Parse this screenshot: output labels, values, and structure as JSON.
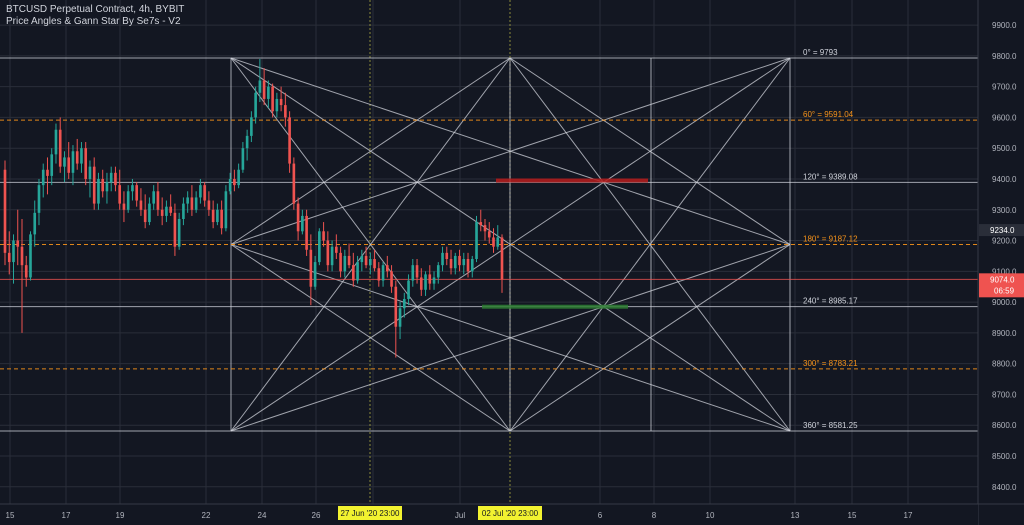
{
  "header": {
    "symbol_line": "BTCUSD Perpetual Contract, 4h, BYBIT",
    "indicator_line": "Price Angles & Gann Star By Se7s - V2"
  },
  "colors": {
    "background": "#131722",
    "grid": "#2a2e39",
    "bull": "#26a69a",
    "bear": "#ef5350",
    "gann_white": "#d1d4dc",
    "gann_orange": "#f7931a",
    "vertical_marker": "#8a8a3a",
    "date_badge": "#f2f230",
    "red_zone": "#b71c1c",
    "green_zone": "#2e7d32"
  },
  "chart_data": {
    "type": "candlestick",
    "title": "",
    "xlabel": "",
    "ylabel": "",
    "ylim": [
      8350,
      10000
    ],
    "x_ticks": [
      "15",
      "17",
      "19",
      "22",
      "24",
      "26",
      "29",
      "Jul",
      "6",
      "8",
      "10",
      "13",
      "15",
      "17"
    ],
    "y_ticks": [
      9900.0,
      9800.0,
      9700.0,
      9600.0,
      9500.0,
      9400.0,
      9300.0,
      9200.0,
      9100.0,
      9000.0,
      8900.0,
      8800.0,
      8700.0,
      8600.0,
      8500.0,
      8400.0
    ],
    "gann_levels": [
      {
        "label": "0° = 9793",
        "price": 9793,
        "style": "solid"
      },
      {
        "label": "60° = 9591.04",
        "price": 9591.04,
        "style": "dashed"
      },
      {
        "label": "120° = 9389.08",
        "price": 9389.08,
        "style": "solid"
      },
      {
        "label": "180° = 9187.12",
        "price": 9187.12,
        "style": "dashed"
      },
      {
        "label": "240° = 8985.17",
        "price": 8985.17,
        "style": "solid"
      },
      {
        "label": "300° = 8783.21",
        "price": 8783.21,
        "style": "dashed"
      },
      {
        "label": "360° = 8581.25",
        "price": 8581.25,
        "style": "solid"
      }
    ],
    "price_badges": [
      {
        "label": "9234.0",
        "price": 9234.0,
        "kind": "reference"
      },
      {
        "label": "9074.0",
        "price": 9074.0,
        "kind": "last"
      }
    ],
    "countdown": "06:59",
    "date_markers": [
      {
        "label": "27 Jun '20  23:00"
      },
      {
        "label": "02 Jul '20  23:00"
      }
    ],
    "zones": [
      {
        "name": "resistance",
        "price": 9395
      },
      {
        "name": "support",
        "price": 8985
      }
    ],
    "candles": [
      [
        9430,
        9460,
        9120,
        9160
      ],
      [
        9160,
        9230,
        9090,
        9130
      ],
      [
        9130,
        9220,
        9060,
        9200
      ],
      [
        9200,
        9300,
        9120,
        9180
      ],
      [
        9180,
        9270,
        8900,
        9120
      ],
      [
        9120,
        9150,
        9050,
        9080
      ],
      [
        9080,
        9230,
        9070,
        9220
      ],
      [
        9220,
        9330,
        9180,
        9290
      ],
      [
        9290,
        9400,
        9250,
        9380
      ],
      [
        9380,
        9450,
        9340,
        9430
      ],
      [
        9430,
        9470,
        9350,
        9410
      ],
      [
        9410,
        9500,
        9380,
        9480
      ],
      [
        9480,
        9580,
        9450,
        9560
      ],
      [
        9560,
        9600,
        9420,
        9440
      ],
      [
        9440,
        9490,
        9390,
        9470
      ],
      [
        9470,
        9520,
        9400,
        9420
      ],
      [
        9420,
        9510,
        9380,
        9490
      ],
      [
        9490,
        9530,
        9430,
        9450
      ],
      [
        9450,
        9520,
        9420,
        9500
      ],
      [
        9500,
        9520,
        9380,
        9400
      ],
      [
        9400,
        9460,
        9340,
        9440
      ],
      [
        9440,
        9470,
        9300,
        9320
      ],
      [
        9320,
        9420,
        9300,
        9400
      ],
      [
        9400,
        9430,
        9340,
        9360
      ],
      [
        9360,
        9420,
        9320,
        9390
      ],
      [
        9390,
        9440,
        9360,
        9420
      ],
      [
        9420,
        9440,
        9360,
        9380
      ],
      [
        9380,
        9430,
        9300,
        9320
      ],
      [
        9320,
        9360,
        9260,
        9300
      ],
      [
        9300,
        9380,
        9290,
        9360
      ],
      [
        9360,
        9400,
        9330,
        9380
      ],
      [
        9380,
        9390,
        9310,
        9330
      ],
      [
        9330,
        9370,
        9280,
        9300
      ],
      [
        9300,
        9350,
        9240,
        9260
      ],
      [
        9260,
        9340,
        9250,
        9320
      ],
      [
        9320,
        9380,
        9300,
        9360
      ],
      [
        9360,
        9390,
        9280,
        9300
      ],
      [
        9300,
        9340,
        9250,
        9280
      ],
      [
        9280,
        9330,
        9260,
        9310
      ],
      [
        9310,
        9350,
        9280,
        9290
      ],
      [
        9290,
        9320,
        9150,
        9180
      ],
      [
        9180,
        9290,
        9170,
        9270
      ],
      [
        9270,
        9340,
        9250,
        9320
      ],
      [
        9320,
        9360,
        9290,
        9340
      ],
      [
        9340,
        9380,
        9280,
        9300
      ],
      [
        9300,
        9360,
        9290,
        9340
      ],
      [
        9340,
        9400,
        9320,
        9380
      ],
      [
        9380,
        9390,
        9310,
        9330
      ],
      [
        9330,
        9360,
        9280,
        9300
      ],
      [
        9300,
        9330,
        9240,
        9260
      ],
      [
        9260,
        9320,
        9250,
        9300
      ],
      [
        9300,
        9330,
        9220,
        9240
      ],
      [
        9240,
        9380,
        9230,
        9360
      ],
      [
        9360,
        9420,
        9350,
        9400
      ],
      [
        9400,
        9430,
        9360,
        9380
      ],
      [
        9380,
        9450,
        9370,
        9430
      ],
      [
        9430,
        9520,
        9420,
        9500
      ],
      [
        9500,
        9560,
        9460,
        9540
      ],
      [
        9540,
        9620,
        9520,
        9600
      ],
      [
        9600,
        9700,
        9580,
        9680
      ],
      [
        9680,
        9790,
        9650,
        9720
      ],
      [
        9720,
        9760,
        9640,
        9660
      ],
      [
        9660,
        9720,
        9630,
        9700
      ],
      [
        9700,
        9710,
        9600,
        9620
      ],
      [
        9620,
        9680,
        9600,
        9660
      ],
      [
        9660,
        9700,
        9620,
        9640
      ],
      [
        9640,
        9680,
        9570,
        9600
      ],
      [
        9600,
        9620,
        9420,
        9450
      ],
      [
        9450,
        9470,
        9300,
        9320
      ],
      [
        9320,
        9340,
        9200,
        9230
      ],
      [
        9230,
        9300,
        9220,
        9280
      ],
      [
        9280,
        9300,
        9150,
        9170
      ],
      [
        9170,
        9220,
        8990,
        9050
      ],
      [
        9050,
        9150,
        9040,
        9130
      ],
      [
        9130,
        9240,
        9120,
        9230
      ],
      [
        9230,
        9260,
        9180,
        9200
      ],
      [
        9200,
        9230,
        9100,
        9120
      ],
      [
        9120,
        9200,
        9100,
        9180
      ],
      [
        9180,
        9220,
        9140,
        9160
      ],
      [
        9160,
        9180,
        9080,
        9100
      ],
      [
        9100,
        9170,
        9080,
        9150
      ],
      [
        9150,
        9190,
        9110,
        9120
      ],
      [
        9120,
        9160,
        9050,
        9070
      ],
      [
        9070,
        9150,
        9060,
        9130
      ],
      [
        9130,
        9170,
        9100,
        9150
      ],
      [
        9150,
        9180,
        9110,
        9120
      ],
      [
        9120,
        9160,
        9090,
        9140
      ],
      [
        9140,
        9170,
        9100,
        9110
      ],
      [
        9110,
        9130,
        9050,
        9070
      ],
      [
        9070,
        9130,
        9050,
        9120
      ],
      [
        9120,
        9150,
        9080,
        9100
      ],
      [
        9100,
        9120,
        9030,
        9050
      ],
      [
        9050,
        9070,
        8820,
        8920
      ],
      [
        8920,
        9000,
        8880,
        8980
      ],
      [
        8980,
        9030,
        8950,
        9010
      ],
      [
        9010,
        9090,
        8990,
        9070
      ],
      [
        9070,
        9140,
        9050,
        9120
      ],
      [
        9120,
        9140,
        9060,
        9080
      ],
      [
        9080,
        9110,
        9020,
        9040
      ],
      [
        9040,
        9100,
        9020,
        9090
      ],
      [
        9090,
        9120,
        9040,
        9060
      ],
      [
        9060,
        9100,
        9040,
        9080
      ],
      [
        9080,
        9130,
        9060,
        9120
      ],
      [
        9120,
        9180,
        9100,
        9160
      ],
      [
        9160,
        9180,
        9120,
        9140
      ],
      [
        9140,
        9170,
        9090,
        9110
      ],
      [
        9110,
        9160,
        9090,
        9150
      ],
      [
        9150,
        9170,
        9100,
        9120
      ],
      [
        9120,
        9160,
        9090,
        9140
      ],
      [
        9140,
        9160,
        9080,
        9100
      ],
      [
        9100,
        9150,
        9080,
        9140
      ],
      [
        9140,
        9280,
        9130,
        9260
      ],
      [
        9260,
        9300,
        9230,
        9250
      ],
      [
        9250,
        9270,
        9200,
        9230
      ],
      [
        9230,
        9260,
        9190,
        9210
      ],
      [
        9210,
        9240,
        9160,
        9180
      ],
      [
        9180,
        9250,
        9170,
        9210
      ],
      [
        9210,
        9220,
        9030,
        9074
      ]
    ]
  }
}
